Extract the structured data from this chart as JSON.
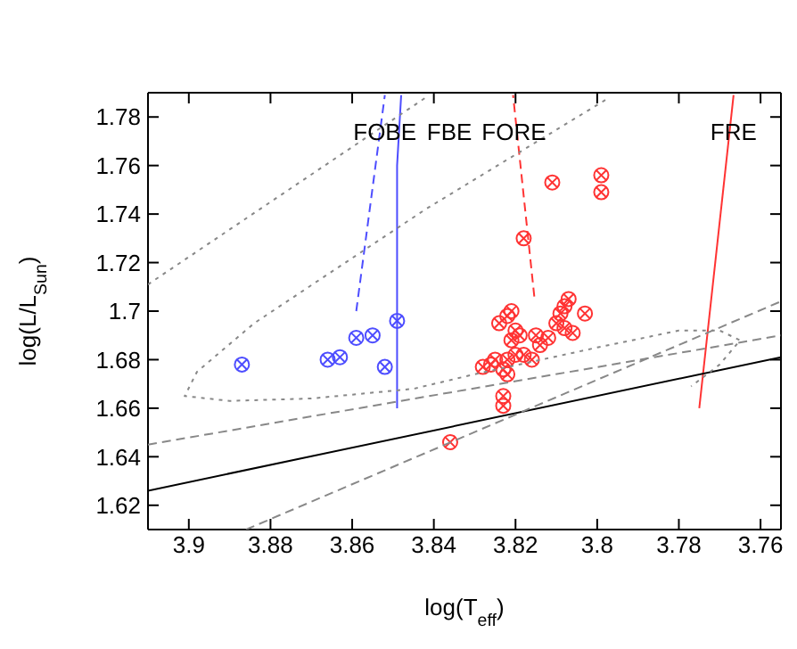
{
  "chart_data": {
    "type": "scatter",
    "xlabel": "log(T$_{eff}$)",
    "ylabel": "log(L/L$_{Sun}$)",
    "xlim": [
      3.91,
      3.755
    ],
    "xticks": [
      3.9,
      3.88,
      3.86,
      3.84,
      3.82,
      3.8,
      3.78,
      3.76
    ],
    "ylim": [
      1.61,
      1.79
    ],
    "yticks": [
      1.62,
      1.64,
      1.66,
      1.68,
      1.7,
      1.72,
      1.74,
      1.76,
      1.78
    ],
    "grid": false,
    "legend": false,
    "series": [
      {
        "color": "#4d4dff",
        "marker": "circle",
        "x": [
          3.887,
          3.866,
          3.863,
          3.859,
          3.855,
          3.852,
          3.849
        ],
        "values": [
          1.678,
          1.68,
          1.681,
          1.689,
          1.69,
          1.677,
          1.696
        ]
      },
      {
        "color": "#ff3333",
        "marker": "circle",
        "x": [
          3.836,
          3.828,
          3.826,
          3.823,
          3.822,
          3.822,
          3.82,
          3.818,
          3.816,
          3.821,
          3.819,
          3.824,
          3.822,
          3.821,
          3.82,
          3.814,
          3.812,
          3.81,
          3.809,
          3.808,
          3.807,
          3.808,
          3.806,
          3.803,
          3.823,
          3.823,
          3.818,
          3.811,
          3.799,
          3.799,
          3.815,
          3.825
        ],
        "values": [
          1.646,
          1.677,
          1.678,
          1.676,
          1.674,
          1.68,
          1.682,
          1.682,
          1.68,
          1.688,
          1.69,
          1.695,
          1.698,
          1.7,
          1.692,
          1.686,
          1.689,
          1.695,
          1.699,
          1.702,
          1.705,
          1.693,
          1.691,
          1.699,
          1.665,
          1.661,
          1.73,
          1.753,
          1.756,
          1.749,
          1.69,
          1.68
        ]
      },
      {
        "type": "line",
        "name": "FOBE",
        "color": "#4d4dff",
        "line_style": "dashed",
        "x": [
          3.859,
          3.852
        ],
        "values": [
          1.7,
          1.789
        ]
      },
      {
        "type": "line",
        "name": "FBE",
        "color": "#4d4dff",
        "line_style": "solid",
        "x": [
          3.849,
          3.849,
          3.848
        ],
        "values": [
          1.66,
          1.76,
          1.789
        ]
      },
      {
        "type": "line",
        "name": "FORE",
        "color": "#ff3333",
        "line_style": "dashed",
        "x": [
          3.8154,
          3.8206
        ],
        "values": [
          1.706,
          1.789
        ]
      },
      {
        "type": "line",
        "name": "FRE",
        "color": "#ff3333",
        "line_style": "solid",
        "x": [
          3.775,
          3.7666
        ],
        "values": [
          1.66,
          1.789
        ]
      },
      {
        "type": "line",
        "color": "#000000",
        "line_style": "solid",
        "x": [
          3.91,
          3.755
        ],
        "values": [
          1.626,
          1.681
        ]
      },
      {
        "type": "line",
        "color": "#888888",
        "line_style": "dotted",
        "x": [
          3.91,
          3.842
        ],
        "values": [
          1.711,
          1.788
        ]
      },
      {
        "type": "line",
        "color": "#888888",
        "line_style": "dotted",
        "x": [
          3.798,
          3.842,
          3.884,
          3.898,
          3.901,
          3.89,
          3.87,
          3.845,
          3.83,
          3.8,
          3.78,
          3.77,
          3.765,
          3.77,
          3.777
        ],
        "values": [
          1.787,
          1.742,
          1.695,
          1.675,
          1.665,
          1.663,
          1.664,
          1.668,
          1.674,
          1.685,
          1.692,
          1.692,
          1.688,
          1.678,
          1.669
        ]
      },
      {
        "type": "line",
        "color": "#888888",
        "line_style": "dashed",
        "x": [
          3.91,
          3.755
        ],
        "values": [
          1.645,
          1.69
        ]
      },
      {
        "type": "line",
        "color": "#888888",
        "line_style": "dashed",
        "x": [
          3.886,
          3.755
        ],
        "values": [
          1.61,
          1.704
        ]
      }
    ]
  }
}
